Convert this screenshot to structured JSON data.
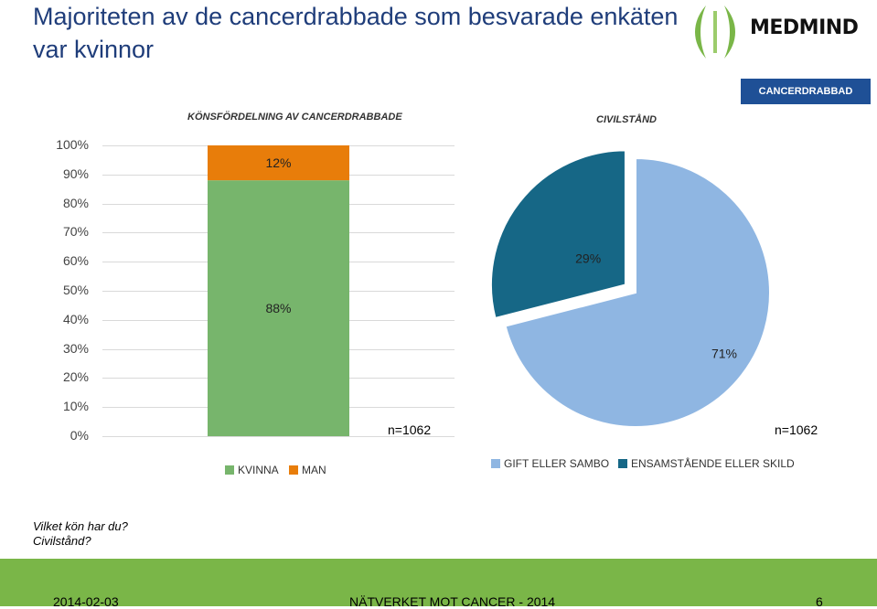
{
  "page": {
    "title": "Majoriteten av de cancerdrabbade som besvarade enkäten var kvinnor",
    "badge": "CANCERDRABBAD",
    "logo": "MEDMIND"
  },
  "colors": {
    "kvinna": "#77b56c",
    "man": "#e87d0a",
    "gift": "#8fb6e2",
    "ensam": "#166786",
    "footer": "#7ab648"
  },
  "chart_data": [
    {
      "type": "bar",
      "title": "KÖNSFÖRDELNING AV CANCERDRABBADE",
      "categories": [
        ""
      ],
      "stacked": true,
      "series": [
        {
          "name": "KVINNA",
          "values": [
            88
          ],
          "label": "88%",
          "color": "#77b56c"
        },
        {
          "name": "MAN",
          "values": [
            12
          ],
          "label": "12%",
          "color": "#e87d0a"
        }
      ],
      "yticks": [
        "0%",
        "10%",
        "20%",
        "30%",
        "40%",
        "50%",
        "60%",
        "70%",
        "80%",
        "90%",
        "100%"
      ],
      "ylim": [
        0,
        100
      ],
      "grid": true,
      "n_label": "n=1062",
      "legend": "bottom"
    },
    {
      "type": "pie",
      "title": "CIVILSTÅND",
      "slices": [
        {
          "name": "ENSAMSTÅENDE ELLER SKILD",
          "value": 29,
          "label": "29%",
          "color": "#166786",
          "exploded": true
        },
        {
          "name": "GIFT ELLER SAMBO",
          "value": 71,
          "label": "71%",
          "color": "#8fb6e2"
        }
      ],
      "legend_order": [
        "GIFT ELLER SAMBO",
        "ENSAMSTÅENDE ELLER SKILD"
      ],
      "n_label": "n=1062",
      "legend": "bottom"
    }
  ],
  "questions": [
    "Vilket kön har du?",
    "Civilstånd?"
  ],
  "footer": {
    "date": "2014-02-03",
    "center": "NÄTVERKET MOT CANCER - 2014",
    "page": "6"
  }
}
